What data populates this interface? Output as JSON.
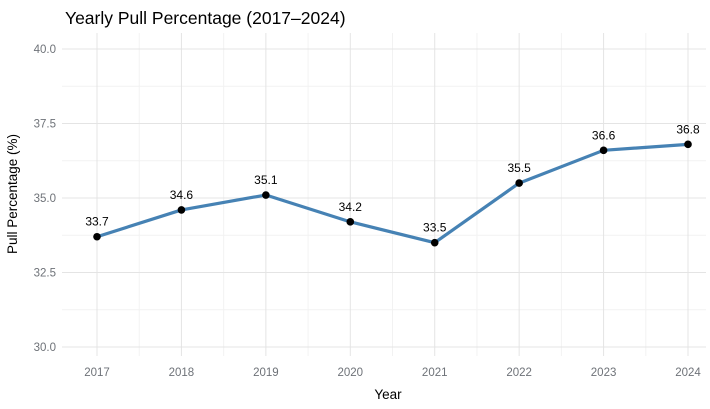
{
  "chart_data": {
    "type": "line",
    "title": "Yearly Pull Percentage (2017–2024)",
    "xlabel": "Year",
    "ylabel": "Pull Percentage (%)",
    "categories": [
      "2017",
      "2018",
      "2019",
      "2020",
      "2021",
      "2022",
      "2023",
      "2024"
    ],
    "series": [
      {
        "name": "Pull Percentage",
        "values": [
          33.7,
          34.6,
          35.1,
          34.2,
          33.5,
          35.5,
          36.6,
          36.8
        ]
      }
    ],
    "point_labels": [
      "33.7",
      "34.6",
      "35.1",
      "34.2",
      "33.5",
      "35.5",
      "36.6",
      "36.8"
    ],
    "y_ticks": [
      30.0,
      32.5,
      35.0,
      37.5,
      40.0
    ],
    "y_tick_labels": [
      "30.0",
      "32.5",
      "35.0",
      "37.5",
      "40.0"
    ],
    "ylim": [
      30.0,
      40.0
    ],
    "grid": "major and minor, light gray, white background",
    "legend": "none",
    "colors": {
      "line": "#4682B4",
      "point": "#000000",
      "grid_major": "#E4E4E4",
      "grid_minor": "#F2F2F2",
      "tick_label": "#6E7278",
      "text": "#000000",
      "background": "#FFFFFF"
    }
  }
}
